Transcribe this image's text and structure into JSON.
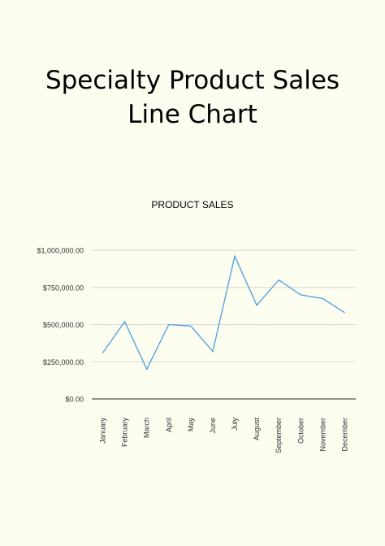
{
  "page": {
    "title_line1": "Specialty Product Sales",
    "title_line2": "Line Chart"
  },
  "chart_data": {
    "type": "line",
    "title": "PRODUCT SALES",
    "xlabel": "",
    "ylabel": "",
    "categories": [
      "January",
      "February",
      "March",
      "April",
      "May",
      "June",
      "July",
      "August",
      "September",
      "October",
      "November",
      "December"
    ],
    "series": [
      {
        "values": [
          310000,
          520000,
          200000,
          500000,
          490000,
          320000,
          960000,
          630000,
          800000,
          700000,
          675000,
          580000
        ],
        "color": "#4a9fe0"
      }
    ],
    "ylim": [
      0,
      1000000
    ],
    "yticks": [
      0,
      250000,
      500000,
      750000,
      1000000
    ],
    "ytick_labels": [
      "$0.00",
      "$250,000.00",
      "$500,000.00",
      "$750,000.00",
      "$1,000,000.00"
    ],
    "grid": true,
    "legend": "none"
  }
}
